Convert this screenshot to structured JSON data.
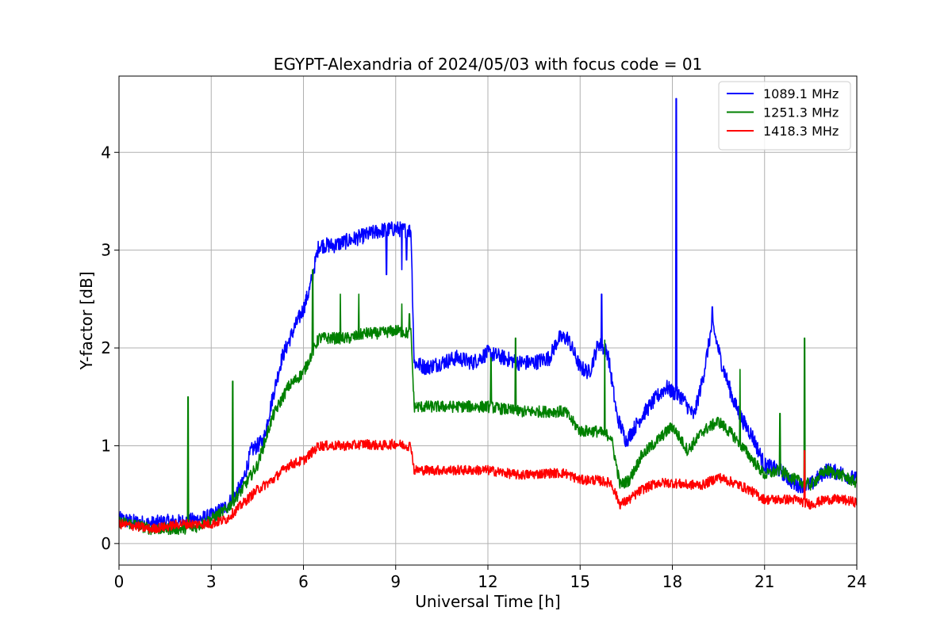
{
  "chart_data": {
    "type": "line",
    "title": "EGYPT-Alexandria of 2024/05/03 with focus code = 01",
    "xlabel": "Universal Time [h]",
    "ylabel": "Y-factor [dB]",
    "xlim": [
      0,
      24
    ],
    "ylim": [
      -0.22,
      4.78
    ],
    "xticks": [
      0,
      3,
      6,
      9,
      12,
      15,
      18,
      21,
      24
    ],
    "yticks": [
      0,
      1,
      2,
      3,
      4
    ],
    "grid": true,
    "legend_position": "top-right",
    "series": [
      {
        "name": "1089.1 MHz",
        "color": "#0000ff",
        "noise": 0.08,
        "x": [
          0,
          0.5,
          1,
          1.5,
          2,
          2.5,
          3,
          3.5,
          4,
          4.3,
          4.7,
          5,
          5.3,
          5.7,
          6,
          6.2,
          6.5,
          7,
          7.5,
          8,
          8.5,
          9,
          9.4,
          9.5,
          9.6,
          10,
          10.5,
          11,
          11.5,
          12,
          12.5,
          13,
          13.5,
          14,
          14.3,
          14.6,
          15,
          15.3,
          15.6,
          15.9,
          16.2,
          16.5,
          17,
          17.5,
          17.8,
          18,
          18.3,
          18.7,
          19,
          19.3,
          19.6,
          20,
          20.3,
          20.6,
          21,
          21.5,
          22,
          22.5,
          23,
          23.5,
          24
        ],
        "y": [
          0.25,
          0.22,
          0.2,
          0.22,
          0.22,
          0.24,
          0.28,
          0.38,
          0.6,
          0.95,
          1.05,
          1.5,
          1.9,
          2.2,
          2.4,
          2.6,
          3.05,
          3.05,
          3.1,
          3.15,
          3.2,
          3.22,
          3.2,
          3.2,
          1.85,
          1.8,
          1.85,
          1.9,
          1.85,
          1.95,
          1.9,
          1.85,
          1.85,
          1.9,
          2.1,
          2.1,
          1.8,
          1.75,
          2.05,
          1.95,
          1.3,
          1.05,
          1.3,
          1.5,
          1.6,
          1.55,
          1.5,
          1.3,
          1.7,
          2.25,
          1.85,
          1.45,
          1.25,
          1.1,
          0.8,
          0.75,
          0.6,
          0.6,
          0.75,
          0.72,
          0.65
        ],
        "spikes": [
          [
            18.13,
            4.55
          ],
          [
            9.35,
            2.9
          ],
          [
            8.7,
            2.75
          ],
          [
            9.2,
            2.8
          ],
          [
            19.3,
            2.42
          ],
          [
            15.7,
            2.55
          ]
        ]
      },
      {
        "name": "1251.3 MHz",
        "color": "#008000",
        "noise": 0.06,
        "x": [
          0,
          0.5,
          1,
          1.5,
          2,
          2.5,
          3,
          3.5,
          4,
          4.5,
          5,
          5.5,
          6,
          6.5,
          7,
          7.5,
          8,
          8.5,
          9,
          9.4,
          9.5,
          9.6,
          10,
          11,
          12,
          13,
          14,
          14.5,
          15,
          15.5,
          16,
          16.3,
          16.6,
          17,
          17.5,
          18,
          18.5,
          19,
          19.5,
          20,
          20.5,
          21,
          21.5,
          22,
          22.5,
          23,
          23.5,
          24
        ],
        "y": [
          0.22,
          0.2,
          0.15,
          0.15,
          0.15,
          0.17,
          0.25,
          0.35,
          0.55,
          0.8,
          1.3,
          1.6,
          1.75,
          2.1,
          2.1,
          2.1,
          2.15,
          2.15,
          2.18,
          2.15,
          2.15,
          1.4,
          1.4,
          1.4,
          1.4,
          1.35,
          1.35,
          1.35,
          1.15,
          1.15,
          1.1,
          0.6,
          0.65,
          0.9,
          1.05,
          1.2,
          0.95,
          1.15,
          1.25,
          1.1,
          0.9,
          0.7,
          0.75,
          0.65,
          0.6,
          0.75,
          0.7,
          0.62
        ],
        "spikes": [
          [
            2.25,
            1.5
          ],
          [
            3.7,
            1.66
          ],
          [
            6.3,
            2.8
          ],
          [
            7.2,
            2.55
          ],
          [
            7.8,
            2.55
          ],
          [
            9.2,
            2.45
          ],
          [
            9.45,
            2.35
          ],
          [
            12.1,
            1.9
          ],
          [
            12.9,
            2.1
          ],
          [
            15.8,
            2.08
          ],
          [
            20.2,
            1.78
          ],
          [
            21.5,
            1.33
          ],
          [
            22.3,
            2.1
          ]
        ]
      },
      {
        "name": "1418.3 MHz",
        "color": "#ff0000",
        "noise": 0.05,
        "x": [
          0,
          0.5,
          1,
          1.5,
          2,
          2.5,
          3,
          3.5,
          4,
          4.5,
          5,
          5.5,
          6,
          6.5,
          7,
          7.5,
          8,
          8.5,
          9,
          9.4,
          9.5,
          9.6,
          10,
          11,
          12,
          13,
          14,
          14.5,
          15,
          15.5,
          16,
          16.3,
          16.6,
          17,
          17.5,
          18,
          18.5,
          19,
          19.5,
          20,
          20.5,
          21,
          21.5,
          22,
          22.5,
          23,
          23.5,
          24
        ],
        "y": [
          0.2,
          0.18,
          0.15,
          0.17,
          0.2,
          0.2,
          0.2,
          0.25,
          0.4,
          0.55,
          0.65,
          0.8,
          0.85,
          1.0,
          1.0,
          1.0,
          1.02,
          1.0,
          1.02,
          1.0,
          1.0,
          0.75,
          0.75,
          0.75,
          0.75,
          0.7,
          0.72,
          0.72,
          0.65,
          0.65,
          0.62,
          0.4,
          0.45,
          0.55,
          0.62,
          0.62,
          0.6,
          0.6,
          0.68,
          0.62,
          0.55,
          0.45,
          0.45,
          0.45,
          0.4,
          0.45,
          0.45,
          0.42
        ],
        "spikes": [
          [
            22.3,
            0.95
          ]
        ]
      }
    ]
  }
}
